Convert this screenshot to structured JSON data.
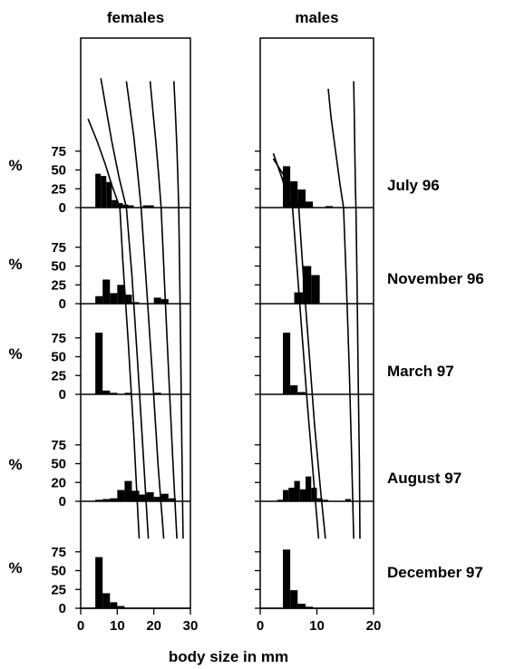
{
  "chart_data": [
    {
      "type": "bar",
      "panel": "females",
      "title": "females",
      "xlabel": "body size in mm",
      "ylabel": "%",
      "xlim": [
        0,
        30
      ],
      "xticks": [
        "0",
        "10",
        "20",
        "30"
      ],
      "colors": {
        "bars": "#000000",
        "lines": "#000000"
      },
      "grid": false,
      "rows": [
        {
          "label": "July 96",
          "ylim": [
            0,
            100
          ],
          "yticks": [
            "0",
            "25",
            "50",
            "75"
          ],
          "bins": [
            {
              "x": [
                4,
                5.5
              ],
              "y": 45
            },
            {
              "x": [
                5.5,
                7
              ],
              "y": 42
            },
            {
              "x": [
                7,
                8.5
              ],
              "y": 34
            },
            {
              "x": [
                8.5,
                10
              ],
              "y": 10
            },
            {
              "x": [
                10,
                11.5
              ],
              "y": 6
            },
            {
              "x": [
                11.5,
                13
              ],
              "y": 4
            },
            {
              "x": [
                13,
                14.5
              ],
              "y": 3
            },
            {
              "x": [
                17,
                18.5
              ],
              "y": 3
            },
            {
              "x": [
                18.5,
                20
              ],
              "y": 3
            }
          ]
        },
        {
          "label": "November 96",
          "ylim": [
            0,
            100
          ],
          "yticks": [
            "0",
            "25",
            "50",
            "75"
          ],
          "bins": [
            {
              "x": [
                4,
                6
              ],
              "y": 10
            },
            {
              "x": [
                6,
                8
              ],
              "y": 32
            },
            {
              "x": [
                8,
                10
              ],
              "y": 14
            },
            {
              "x": [
                10,
                12
              ],
              "y": 25
            },
            {
              "x": [
                12,
                14
              ],
              "y": 12
            },
            {
              "x": [
                14,
                16
              ],
              "y": 2
            },
            {
              "x": [
                20,
                22
              ],
              "y": 8
            },
            {
              "x": [
                22,
                24
              ],
              "y": 6
            }
          ]
        },
        {
          "label": "March 97",
          "ylim": [
            0,
            100
          ],
          "yticks": [
            "0",
            "25",
            "50",
            "75"
          ],
          "bins": [
            {
              "x": [
                4,
                6
              ],
              "y": 82
            },
            {
              "x": [
                6,
                8
              ],
              "y": 5
            },
            {
              "x": [
                8,
                10
              ],
              "y": 2
            },
            {
              "x": [
                12,
                14
              ],
              "y": 2
            },
            {
              "x": [
                20,
                22
              ],
              "y": 2
            }
          ]
        },
        {
          "label": "August 97",
          "ylim": [
            0,
            100
          ],
          "yticks": [
            "0",
            "20",
            "50",
            "75"
          ],
          "bins": [
            {
              "x": [
                4,
                6
              ],
              "y": 2
            },
            {
              "x": [
                6,
                8
              ],
              "y": 3
            },
            {
              "x": [
                8,
                10
              ],
              "y": 4
            },
            {
              "x": [
                10,
                12
              ],
              "y": 15
            },
            {
              "x": [
                12,
                14
              ],
              "y": 27
            },
            {
              "x": [
                14,
                16
              ],
              "y": 14
            },
            {
              "x": [
                16,
                18
              ],
              "y": 9
            },
            {
              "x": [
                18,
                20
              ],
              "y": 12
            },
            {
              "x": [
                20,
                22
              ],
              "y": 6
            },
            {
              "x": [
                22,
                24
              ],
              "y": 10
            },
            {
              "x": [
                24,
                26
              ],
              "y": 4
            }
          ]
        },
        {
          "label": "December 97",
          "ylim": [
            0,
            100
          ],
          "yticks": [
            "0",
            "25",
            "50",
            "75"
          ],
          "bins": [
            {
              "x": [
                4,
                6
              ],
              "y": 68
            },
            {
              "x": [
                6,
                8
              ],
              "y": 20
            },
            {
              "x": [
                8,
                10
              ],
              "y": 8
            },
            {
              "x": [
                10,
                12
              ],
              "y": 3
            }
          ]
        }
      ],
      "growth_curves": [
        [
          [
            2,
            118
          ],
          [
            4.5,
            88
          ],
          [
            6.7,
            58
          ],
          [
            8.5,
            30
          ],
          [
            10.7,
            0
          ],
          [
            11.5,
            -70
          ],
          [
            13,
            -178
          ],
          [
            14.5,
            -300
          ],
          [
            16,
            -440
          ]
        ],
        [
          [
            5.5,
            172
          ],
          [
            7,
            130
          ],
          [
            8.5,
            88
          ],
          [
            10.5,
            40
          ],
          [
            12.5,
            0
          ],
          [
            14,
            -90
          ],
          [
            15.5,
            -200
          ],
          [
            17,
            -320
          ],
          [
            18.5,
            -440
          ]
        ],
        [
          [
            12.5,
            168
          ],
          [
            13.5,
            132
          ],
          [
            14.5,
            95
          ],
          [
            15.5,
            50
          ],
          [
            16.5,
            0
          ],
          [
            18,
            -105
          ],
          [
            19.7,
            -230
          ],
          [
            21.2,
            -345
          ],
          [
            22.7,
            -440
          ]
        ],
        [
          [
            19,
            168
          ],
          [
            19.7,
            130
          ],
          [
            20.5,
            90
          ],
          [
            21.3,
            45
          ],
          [
            22,
            0
          ],
          [
            23,
            -110
          ],
          [
            24.2,
            -235
          ],
          [
            25.3,
            -345
          ],
          [
            26.3,
            -440
          ]
        ],
        [
          [
            25.5,
            168
          ],
          [
            25.9,
            125
          ],
          [
            26.3,
            80
          ],
          [
            26.6,
            35
          ],
          [
            26.8,
            0
          ],
          [
            27.1,
            -100
          ],
          [
            27.4,
            -210
          ],
          [
            27.7,
            -330
          ],
          [
            28,
            -440
          ]
        ]
      ]
    },
    {
      "type": "bar",
      "panel": "males",
      "title": "males",
      "xlabel": "body size in mm",
      "ylabel": "%",
      "xlim": [
        0,
        20
      ],
      "xticks": [
        "0",
        "10",
        "20"
      ],
      "colors": {
        "bars": "#000000",
        "lines": "#000000"
      },
      "grid": false,
      "rows": [
        {
          "label": "July 96",
          "ylim": [
            0,
            100
          ],
          "yticks": [
            "0",
            "25",
            "50",
            "75"
          ],
          "bins": [
            {
              "x": [
                4,
                5.3
              ],
              "y": 55
            },
            {
              "x": [
                5.3,
                6.6
              ],
              "y": 35
            },
            {
              "x": [
                6.6,
                8
              ],
              "y": 24
            },
            {
              "x": [
                8,
                9.3
              ],
              "y": 8
            },
            {
              "x": [
                11.5,
                12.8
              ],
              "y": 2
            }
          ]
        },
        {
          "label": "November 96",
          "ylim": [
            0,
            100
          ],
          "yticks": [
            "0",
            "25",
            "50",
            "75"
          ],
          "bins": [
            {
              "x": [
                6,
                7.5
              ],
              "y": 15
            },
            {
              "x": [
                7.5,
                9
              ],
              "y": 50
            },
            {
              "x": [
                9,
                10.5
              ],
              "y": 38
            }
          ]
        },
        {
          "label": "March 97",
          "ylim": [
            0,
            100
          ],
          "yticks": [
            "0",
            "25",
            "50",
            "75"
          ],
          "bins": [
            {
              "x": [
                4,
                5.3
              ],
              "y": 82
            },
            {
              "x": [
                5.3,
                6.6
              ],
              "y": 12
            },
            {
              "x": [
                6.6,
                8
              ],
              "y": 3
            }
          ]
        },
        {
          "label": "August 97",
          "ylim": [
            0,
            100
          ],
          "yticks": [
            "0",
            "20",
            "50",
            "75"
          ],
          "bins": [
            {
              "x": [
                3,
                4
              ],
              "y": 2
            },
            {
              "x": [
                4,
                5
              ],
              "y": 15
            },
            {
              "x": [
                5,
                6
              ],
              "y": 18
            },
            {
              "x": [
                6,
                7
              ],
              "y": 27
            },
            {
              "x": [
                7,
                8
              ],
              "y": 16
            },
            {
              "x": [
                8,
                9
              ],
              "y": 33
            },
            {
              "x": [
                9,
                10
              ],
              "y": 18
            },
            {
              "x": [
                10,
                11
              ],
              "y": 4
            },
            {
              "x": [
                11,
                12
              ],
              "y": 2
            },
            {
              "x": [
                15,
                16
              ],
              "y": 3
            }
          ]
        },
        {
          "label": "December 97",
          "ylim": [
            0,
            100
          ],
          "yticks": [
            "0",
            "25",
            "50",
            "75"
          ],
          "bins": [
            {
              "x": [
                4,
                5.3
              ],
              "y": 78
            },
            {
              "x": [
                5.3,
                6.6
              ],
              "y": 24
            },
            {
              "x": [
                6.6,
                8
              ],
              "y": 6
            },
            {
              "x": [
                8,
                9.3
              ],
              "y": 2
            }
          ]
        }
      ],
      "growth_curves": [
        [
          [
            2.3,
            72
          ],
          [
            3.8,
            40
          ],
          [
            5,
            10
          ],
          [
            5.7,
            0
          ],
          [
            6.3,
            -60
          ],
          [
            7.3,
            -160
          ],
          [
            8.3,
            -260
          ],
          [
            9.4,
            -360
          ],
          [
            10.3,
            -440
          ]
        ],
        [
          [
            2.3,
            65
          ],
          [
            4,
            45
          ],
          [
            5.5,
            24
          ],
          [
            6.8,
            0
          ],
          [
            7.6,
            -90
          ],
          [
            8.6,
            -190
          ],
          [
            9.6,
            -290
          ],
          [
            10.7,
            -380
          ],
          [
            11.5,
            -440
          ]
        ],
        [
          [
            12,
            158
          ],
          [
            12.5,
            120
          ],
          [
            13.3,
            75
          ],
          [
            14.1,
            30
          ],
          [
            14.7,
            0
          ],
          [
            15.2,
            -100
          ],
          [
            15.7,
            -210
          ],
          [
            16.1,
            -320
          ],
          [
            16.5,
            -440
          ]
        ],
        [
          [
            16.5,
            168
          ],
          [
            16.6,
            120
          ],
          [
            16.7,
            70
          ],
          [
            16.8,
            25
          ],
          [
            16.9,
            0
          ],
          [
            17.1,
            -110
          ],
          [
            17.3,
            -230
          ],
          [
            17.5,
            -340
          ],
          [
            17.6,
            -440
          ]
        ]
      ]
    }
  ]
}
